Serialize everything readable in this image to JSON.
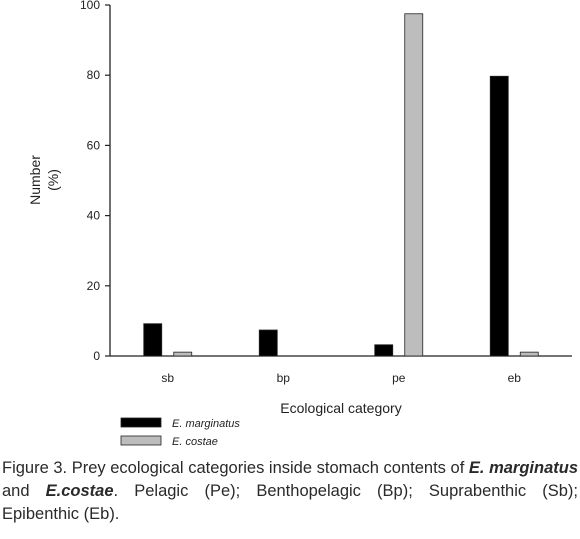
{
  "chart_data": {
    "type": "bar",
    "categories": [
      "sb",
      "bp",
      "pe",
      "eb"
    ],
    "series": [
      {
        "name": "E. marginatus",
        "color": "#000000",
        "values": [
          9.2,
          7.4,
          3.2,
          79.7
        ]
      },
      {
        "name": "E. costae",
        "color": "#bdbdbd",
        "values": [
          1.1,
          0,
          97.5,
          1.1
        ]
      }
    ],
    "xlabel": "Ecological category",
    "ylabel_line1": "Number",
    "ylabel_line2": "(%)",
    "ylim": [
      0,
      100
    ],
    "yticks": [
      0,
      20,
      40,
      60,
      80,
      100
    ],
    "legend_position": "bottom-left",
    "grid": false
  },
  "caption": {
    "part1": "Figure 3. Prey ecological categories inside stomach contents of ",
    "species1_a": "E.",
    "species1_b": "marginatus",
    "part2": " and ",
    "species2": "E.costae",
    "part3": ". Pelagic (Pe); Benthopelagic (Bp); Suprabenthic (Sb); Epibenthic (Eb)."
  }
}
